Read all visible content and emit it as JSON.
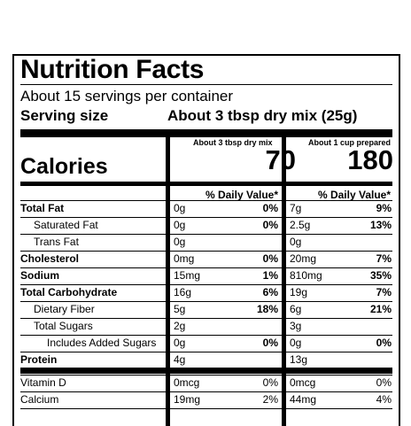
{
  "label": {
    "title": "Nutrition Facts",
    "servings_per_container": "About 15 servings per container",
    "serving_size_label": "Serving size",
    "serving_size_value": "About 3  tbsp dry mix (25g)",
    "calories_label": "Calories",
    "columns": [
      {
        "heading": "About 3  tbsp dry mix",
        "calories": "70",
        "dv_heading": "% Daily Value*"
      },
      {
        "heading": "About 1 cup prepared",
        "calories": "180",
        "dv_heading": "% Daily Value*"
      }
    ],
    "rows": [
      {
        "name": "Total Fat",
        "col1_amount": "0g",
        "col1_dv": "0%",
        "col2_amount": "7g",
        "col2_dv": "9%"
      },
      {
        "name": "Saturated Fat",
        "col1_amount": "0g",
        "col1_dv": "0%",
        "col2_amount": "2.5g",
        "col2_dv": "13%"
      },
      {
        "name": "Trans Fat",
        "col1_amount": "0g",
        "col1_dv": "",
        "col2_amount": "0g",
        "col2_dv": ""
      },
      {
        "name": "Cholesterol",
        "col1_amount": "0mg",
        "col1_dv": "0%",
        "col2_amount": "20mg",
        "col2_dv": "7%"
      },
      {
        "name": "Sodium",
        "col1_amount": "15mg",
        "col1_dv": "1%",
        "col2_amount": "810mg",
        "col2_dv": "35%"
      },
      {
        "name": "Total Carbohydrate",
        "col1_amount": "16g",
        "col1_dv": "6%",
        "col2_amount": "19g",
        "col2_dv": "7%"
      },
      {
        "name": "Dietary Fiber",
        "col1_amount": "5g",
        "col1_dv": "18%",
        "col2_amount": "6g",
        "col2_dv": "21%"
      },
      {
        "name": "Total Sugars",
        "col1_amount": "2g",
        "col1_dv": "",
        "col2_amount": "3g",
        "col2_dv": ""
      },
      {
        "name": "Includes Added Sugars",
        "col1_amount": "0g",
        "col1_dv": "0%",
        "col2_amount": "0g",
        "col2_dv": "0%"
      },
      {
        "name": "Protein",
        "col1_amount": "4g",
        "col1_dv": "",
        "col2_amount": "13g",
        "col2_dv": ""
      },
      {
        "name": "Vitamin D",
        "col1_amount": "0mcg",
        "col1_dv": "0%",
        "col2_amount": "0mcg",
        "col2_dv": "0%"
      },
      {
        "name": "Calcium",
        "col1_amount": "19mg",
        "col1_dv": "2%",
        "col2_amount": "44mg",
        "col2_dv": "4%"
      }
    ]
  }
}
